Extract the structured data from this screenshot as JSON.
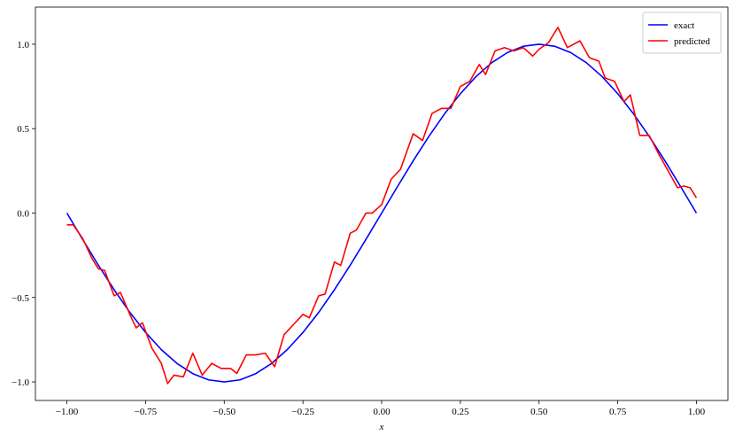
{
  "chart_data": {
    "type": "line",
    "xlabel": "x",
    "xlim": [
      -1.1,
      1.1
    ],
    "ylim": [
      -1.11,
      1.22
    ],
    "xticks": [
      {
        "value": -1,
        "label": "−1.00"
      },
      {
        "value": -0.75,
        "label": "−0.75"
      },
      {
        "value": -0.5,
        "label": "−0.50"
      },
      {
        "value": -0.25,
        "label": "−0.25"
      },
      {
        "value": 0,
        "label": "0.00"
      },
      {
        "value": 0.25,
        "label": "0.25"
      },
      {
        "value": 0.5,
        "label": "0.50"
      },
      {
        "value": 0.75,
        "label": "0.75"
      },
      {
        "value": 1,
        "label": "1.00"
      }
    ],
    "yticks": [
      {
        "value": -1,
        "label": "−1.0"
      },
      {
        "value": -0.5,
        "label": "−0.5"
      },
      {
        "value": 0,
        "label": "0.0"
      },
      {
        "value": 0.5,
        "label": "0.5"
      },
      {
        "value": 1,
        "label": "1.0"
      }
    ],
    "legend": "upper right",
    "series": [
      {
        "name": "exact",
        "color": "#0000ff",
        "x": [
          -1,
          -0.95,
          -0.9,
          -0.85,
          -0.8,
          -0.75,
          -0.7,
          -0.65,
          -0.6,
          -0.55,
          -0.5,
          -0.45,
          -0.4,
          -0.35,
          -0.3,
          -0.25,
          -0.2,
          -0.15,
          -0.1,
          -0.05,
          0,
          0.05,
          0.1,
          0.15,
          0.2,
          0.25,
          0.3,
          0.35,
          0.4,
          0.45,
          0.5,
          0.55,
          0.6,
          0.65,
          0.7,
          0.75,
          0.8,
          0.85,
          0.9,
          0.95,
          1
        ],
        "values": [
          0,
          -0.156,
          -0.309,
          -0.454,
          -0.588,
          -0.707,
          -0.809,
          -0.891,
          -0.951,
          -0.988,
          -1,
          -0.988,
          -0.951,
          -0.891,
          -0.809,
          -0.707,
          -0.588,
          -0.454,
          -0.309,
          -0.156,
          0,
          0.156,
          0.309,
          0.454,
          0.588,
          0.707,
          0.809,
          0.891,
          0.951,
          0.988,
          1,
          0.988,
          0.951,
          0.891,
          0.809,
          0.707,
          0.588,
          0.454,
          0.309,
          0.156,
          0
        ]
      },
      {
        "name": "predicted",
        "color": "#ff0000",
        "x": [
          -1,
          -0.98,
          -0.95,
          -0.92,
          -0.9,
          -0.88,
          -0.85,
          -0.83,
          -0.8,
          -0.78,
          -0.76,
          -0.73,
          -0.7,
          -0.68,
          -0.66,
          -0.63,
          -0.6,
          -0.57,
          -0.54,
          -0.51,
          -0.48,
          -0.46,
          -0.43,
          -0.4,
          -0.37,
          -0.34,
          -0.31,
          -0.28,
          -0.25,
          -0.23,
          -0.2,
          -0.18,
          -0.15,
          -0.13,
          -0.1,
          -0.08,
          -0.05,
          -0.03,
          0,
          0.03,
          0.06,
          0.1,
          0.13,
          0.16,
          0.19,
          0.22,
          0.25,
          0.28,
          0.31,
          0.33,
          0.36,
          0.39,
          0.42,
          0.45,
          0.48,
          0.5,
          0.53,
          0.56,
          0.59,
          0.63,
          0.66,
          0.69,
          0.71,
          0.74,
          0.77,
          0.79,
          0.82,
          0.85,
          0.88,
          0.91,
          0.94,
          0.96,
          0.98,
          1
        ],
        "values": [
          -0.07,
          -0.07,
          -0.15,
          -0.27,
          -0.33,
          -0.34,
          -0.49,
          -0.47,
          -0.6,
          -0.68,
          -0.65,
          -0.8,
          -0.89,
          -1.01,
          -0.96,
          -0.97,
          -0.83,
          -0.96,
          -0.89,
          -0.92,
          -0.92,
          -0.95,
          -0.84,
          -0.84,
          -0.83,
          -0.91,
          -0.72,
          -0.66,
          -0.6,
          -0.62,
          -0.49,
          -0.48,
          -0.29,
          -0.31,
          -0.12,
          -0.1,
          0,
          0,
          0.05,
          0.2,
          0.26,
          0.47,
          0.43,
          0.59,
          0.62,
          0.62,
          0.75,
          0.78,
          0.88,
          0.82,
          0.96,
          0.98,
          0.96,
          0.98,
          0.93,
          0.97,
          1.01,
          1.1,
          0.98,
          1.02,
          0.92,
          0.9,
          0.8,
          0.78,
          0.66,
          0.7,
          0.46,
          0.46,
          0.35,
          0.25,
          0.15,
          0.16,
          0.15,
          0.09
        ]
      }
    ]
  }
}
